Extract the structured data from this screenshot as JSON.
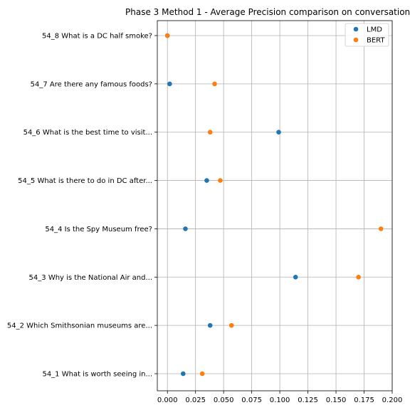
{
  "chart_data": {
    "type": "scatter",
    "title": "Phase 3 Method 1 - Average Precision comparison on conversation 54",
    "xlabel": "",
    "ylabel": "",
    "xlim": [
      -0.009,
      0.2
    ],
    "xticks": [
      0.0,
      0.025,
      0.05,
      0.075,
      0.1,
      0.125,
      0.15,
      0.175,
      0.2
    ],
    "xtick_labels": [
      "0.000",
      "0.025",
      "0.050",
      "0.075",
      "0.100",
      "0.125",
      "0.150",
      "0.175",
      "0.200"
    ],
    "grid": true,
    "legend_position": "top-right",
    "categories": [
      "54_1 What is worth seeing in...",
      "54_2 Which Smithsonian museums are...",
      "54_3 Why is the National Air and...",
      "54_4 Is the Spy Museum free?",
      "54_5 What is there to do in DC after...",
      "54_6 What is the best time to visit...",
      "54_7 Are there any famous foods?",
      "54_8 What is a DC half smoke?"
    ],
    "series": [
      {
        "name": "LMD",
        "color": "#1f77b4",
        "values": [
          0.014,
          0.038,
          0.114,
          0.016,
          0.035,
          0.099,
          0.002,
          0.0
        ]
      },
      {
        "name": "BERT",
        "color": "#ff7f0e",
        "values": [
          0.031,
          0.057,
          0.17,
          0.19,
          0.047,
          0.038,
          0.042,
          0.0
        ]
      }
    ]
  }
}
